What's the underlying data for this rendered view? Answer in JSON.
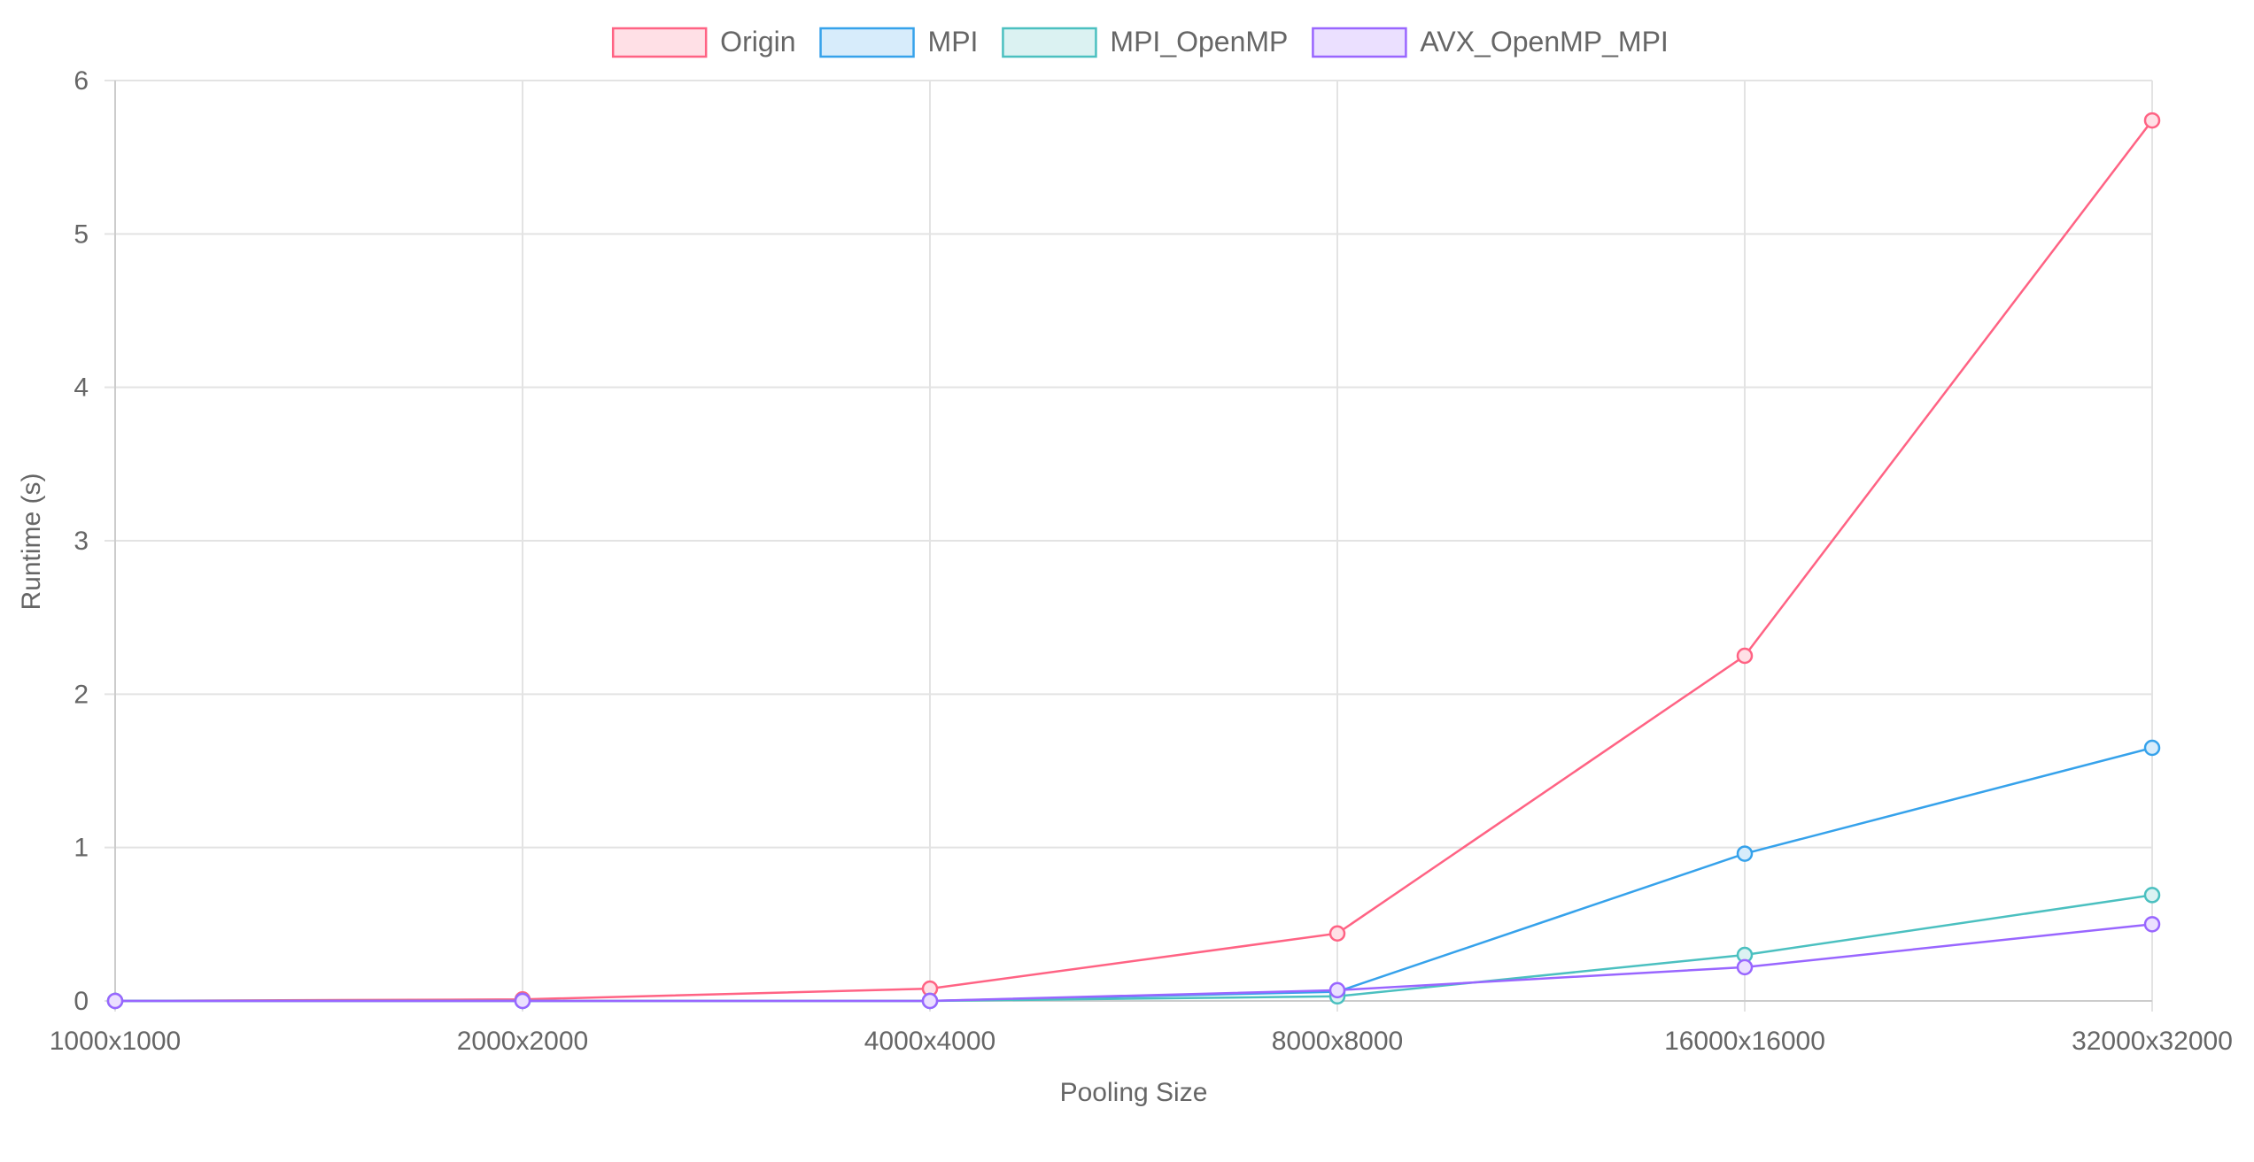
{
  "chart_data": {
    "type": "line",
    "title": "",
    "xlabel": "Pooling Size",
    "ylabel": "Runtime (s)",
    "categories": [
      "1000x1000",
      "2000x2000",
      "4000x4000",
      "8000x8000",
      "16000x16000",
      "32000x32000"
    ],
    "ylim": [
      0,
      6
    ],
    "yticks": [
      "0",
      "1",
      "2",
      "3",
      "4",
      "5",
      "6"
    ],
    "grid": true,
    "legend_position": "top-center",
    "series": [
      {
        "name": "Origin",
        "color": "#ff6384",
        "fill": "#ffe0e6",
        "values": [
          0.0,
          0.01,
          0.08,
          0.44,
          2.25,
          5.74
        ]
      },
      {
        "name": "MPI",
        "color": "#36a2eb",
        "fill": "#d7ecfb",
        "values": [
          0.0,
          0.0,
          0.0,
          0.06,
          0.96,
          1.65
        ]
      },
      {
        "name": "MPI_OpenMP",
        "color": "#4bc0c0",
        "fill": "#dbf2f2",
        "values": [
          0.0,
          0.0,
          0.0,
          0.03,
          0.3,
          0.69
        ]
      },
      {
        "name": "AVX_OpenMP_MPI",
        "color": "#9966ff",
        "fill": "#ebe0ff",
        "values": [
          0.0,
          0.0,
          0.0,
          0.07,
          0.22,
          0.5
        ]
      }
    ]
  }
}
